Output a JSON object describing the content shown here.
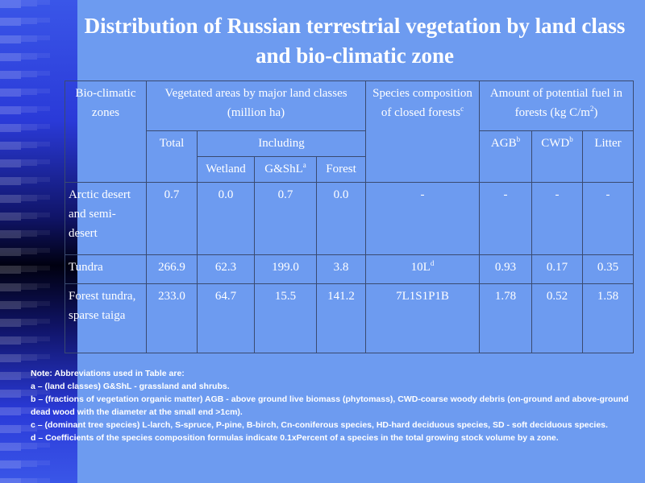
{
  "title": "Distribution of Russian terrestrial vegetation by land class and bio-climatic zone",
  "table": {
    "h_zones": "Bio-climatic zones",
    "h_areas": "Vegetated areas by major land classes (million  ha)",
    "h_species": "Species composition of closed forests",
    "h_species_sup": "c",
    "h_fuel": "Amount of potential fuel in forests (kg C/m",
    "h_fuel_sup": "2",
    "h_fuel_end": ")",
    "h_total": "Total",
    "h_including": "Including",
    "h_agb": "AGB",
    "h_agb_sup": "b",
    "h_cwd": "CWD",
    "h_cwd_sup": "b",
    "h_litter": "Litter",
    "h_wetland": "Wetland",
    "h_gshl": "G&ShL",
    "h_gshl_sup": "a",
    "h_forest": "Forest",
    "rows": [
      {
        "zone": "Arctic desert and semi-desert",
        "total": "0.7",
        "wetland": "0.0",
        "gshl": "0.7",
        "forest": "0.0",
        "species": "-",
        "species_sup": "",
        "agb": "-",
        "cwd": "-",
        "litter": "-"
      },
      {
        "zone": "Tundra",
        "total": "266.9",
        "wetland": "62.3",
        "gshl": "199.0",
        "forest": "3.8",
        "species": "10L",
        "species_sup": "d",
        "agb": "0.93",
        "cwd": "0.17",
        "litter": "0.35"
      },
      {
        "zone": "Forest tundra, sparse taiga",
        "total": "233.0",
        "wetland": "64.7",
        "gshl": "15.5",
        "forest": "141.2",
        "species": "7L1S1P1B",
        "species_sup": "",
        "agb": "1.78",
        "cwd": "0.52",
        "litter": "1.58"
      }
    ]
  },
  "note": {
    "heading": "Note: Abbreviations used in Table are:",
    "a": "a – (land classes) G&ShL - grassland and shrubs.",
    "b": "b – (fractions of vegetation organic matter) AGB - above ground live biomass (phytomass), CWD-coarse woody debris (on-ground and above-ground dead wood with the diameter at the small end >1cm).",
    "c": "c – (dominant tree species) L-larch, S-spruce, P-pine, B-birch, Cn-coniferous species, HD-hard deciduous species, SD - soft deciduous species.",
    "d": "d – Coefficients of the species composition formulas indicate 0.1xPercent of a species in the total growing stock volume by a zone."
  }
}
